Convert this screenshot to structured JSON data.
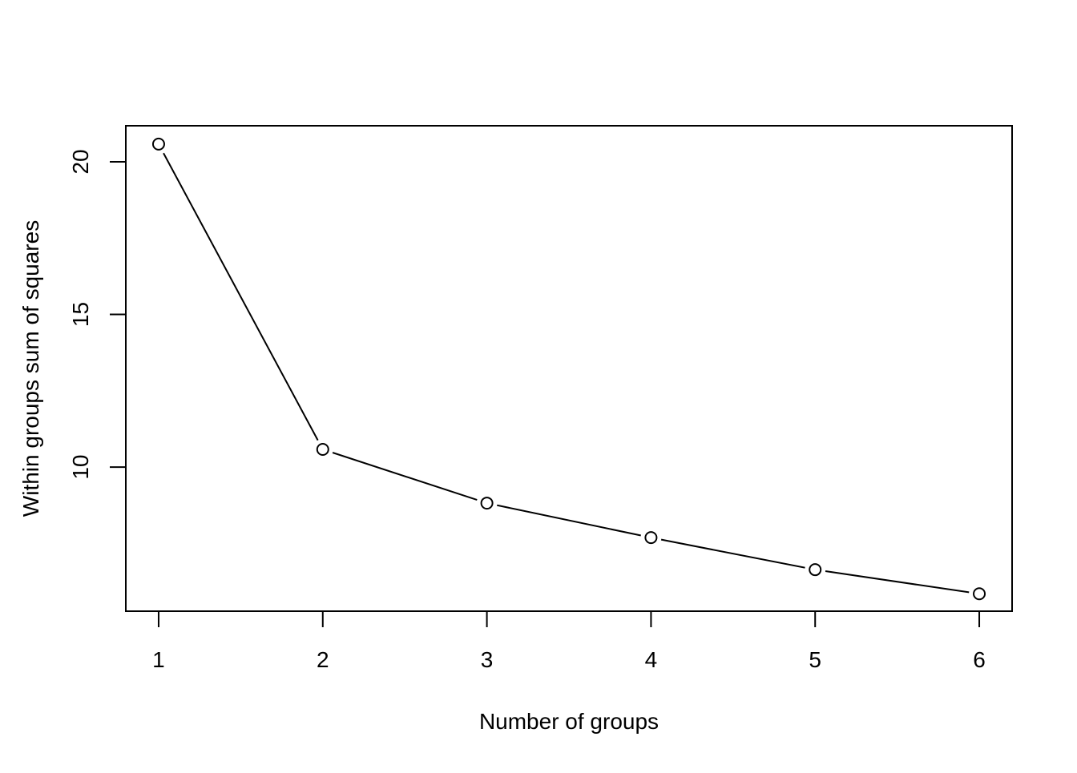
{
  "chart_data": {
    "type": "line",
    "x_label": "Number of groups",
    "y_label": "Within groups sum of squares",
    "x": [
      1,
      2,
      3,
      4,
      5,
      6
    ],
    "series": [
      {
        "color": "#000000",
        "values": [
          20.58,
          10.58,
          8.82,
          7.69,
          6.64,
          5.85
        ]
      }
    ],
    "xlim": [
      0.8,
      6.2
    ],
    "xticks": [
      1,
      2,
      3,
      4,
      5,
      6
    ],
    "ylim": [
      5.28,
      21.18
    ],
    "yticks": [
      10,
      15,
      20
    ]
  }
}
